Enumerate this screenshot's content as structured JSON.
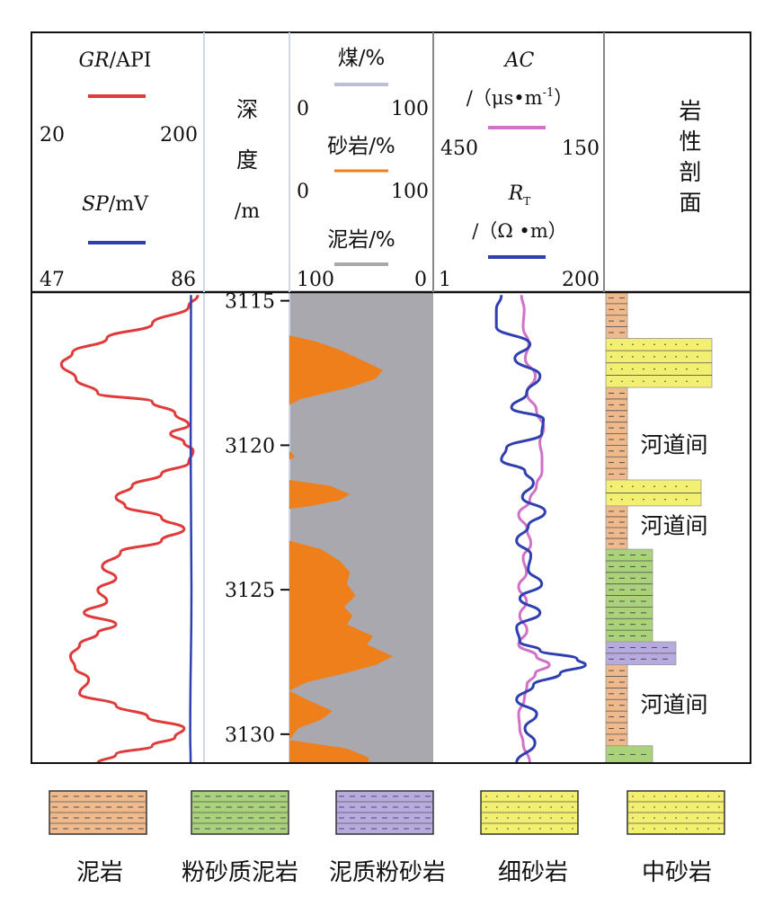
{
  "header": {
    "gr": {
      "name": "GR",
      "unit": "/API",
      "min": "20",
      "max": "200",
      "color": "#e03a3a"
    },
    "sp": {
      "name": "SP",
      "unit": "/mV",
      "min": "47",
      "max": "86",
      "color": "#2f3fb0"
    },
    "depth_label": [
      "深",
      "度",
      "/m"
    ],
    "coal": {
      "label": "煤/%",
      "min": "0",
      "max": "100",
      "color": "#b8bfd6"
    },
    "sand": {
      "label": "砂岩/%",
      "min": "0",
      "max": "100",
      "color": "#ef7f1a"
    },
    "mud": {
      "label": "泥岩/%",
      "min": "100",
      "max": "0",
      "color": "#a8a8ae"
    },
    "ac": {
      "name": "AC",
      "unit": "/（μs•m",
      "sup": "-1",
      "close": "）",
      "min": "450",
      "max": "150",
      "color": "#cf72c8"
    },
    "rt": {
      "name": "R",
      "sub": "T",
      "unit": "/（Ω •m）",
      "min": "1",
      "max": "200",
      "color": "#2f3fb0"
    },
    "lith_label": [
      "岩",
      "性",
      "剖",
      "面"
    ]
  },
  "chart_data": {
    "type": "line",
    "depth_range": [
      3114.7,
      3131.0
    ],
    "depth_ticks": [
      3115,
      3120,
      3125,
      3130
    ],
    "series": [
      {
        "name": "GR",
        "unit": "API",
        "range": [
          20,
          200
        ],
        "points": [
          [
            3114.8,
            200
          ],
          [
            3115.2,
            190
          ],
          [
            3115.8,
            150
          ],
          [
            3116.3,
            100
          ],
          [
            3116.8,
            62
          ],
          [
            3117.2,
            50
          ],
          [
            3117.7,
            66
          ],
          [
            3118.2,
            90
          ],
          [
            3118.5,
            150
          ],
          [
            3118.9,
            175
          ],
          [
            3119.3,
            190
          ],
          [
            3119.6,
            170
          ],
          [
            3119.9,
            185
          ],
          [
            3120.2,
            195
          ],
          [
            3120.6,
            190
          ],
          [
            3121.0,
            160
          ],
          [
            3121.4,
            128
          ],
          [
            3121.8,
            110
          ],
          [
            3122.1,
            120
          ],
          [
            3122.5,
            160
          ],
          [
            3122.9,
            185
          ],
          [
            3123.3,
            160
          ],
          [
            3123.7,
            115
          ],
          [
            3124.2,
            95
          ],
          [
            3124.6,
            110
          ],
          [
            3125.0,
            90
          ],
          [
            3125.4,
            100
          ],
          [
            3125.8,
            75
          ],
          [
            3126.2,
            110
          ],
          [
            3126.5,
            90
          ],
          [
            3126.9,
            70
          ],
          [
            3127.3,
            60
          ],
          [
            3127.7,
            65
          ],
          [
            3128.1,
            80
          ],
          [
            3128.6,
            70
          ],
          [
            3129.0,
            110
          ],
          [
            3129.4,
            145
          ],
          [
            3129.8,
            185
          ],
          [
            3130.1,
            175
          ],
          [
            3130.4,
            150
          ],
          [
            3130.7,
            110
          ],
          [
            3131.0,
            90
          ]
        ]
      },
      {
        "name": "SP",
        "unit": "mV",
        "range": [
          47,
          86
        ],
        "points": [
          [
            3114.8,
            84.4
          ],
          [
            3120,
            84.3
          ],
          [
            3125,
            84.5
          ],
          [
            3130,
            84.2
          ],
          [
            3131,
            84.3
          ]
        ]
      },
      {
        "name": "砂岩",
        "unit": "%",
        "range": [
          0,
          100
        ],
        "points": [
          [
            3114.8,
            0
          ],
          [
            3116.2,
            0
          ],
          [
            3116.4,
            18
          ],
          [
            3116.7,
            35
          ],
          [
            3117.0,
            48
          ],
          [
            3117.4,
            65
          ],
          [
            3117.7,
            60
          ],
          [
            3118.0,
            42
          ],
          [
            3118.2,
            25
          ],
          [
            3118.4,
            8
          ],
          [
            3118.6,
            0
          ],
          [
            3120.2,
            0
          ],
          [
            3120.4,
            4
          ],
          [
            3120.5,
            0
          ],
          [
            3121.2,
            0
          ],
          [
            3121.4,
            28
          ],
          [
            3121.7,
            42
          ],
          [
            3121.9,
            35
          ],
          [
            3122.1,
            15
          ],
          [
            3122.2,
            0
          ],
          [
            3123.3,
            0
          ],
          [
            3123.6,
            22
          ],
          [
            3124.0,
            35
          ],
          [
            3124.4,
            42
          ],
          [
            3124.8,
            40
          ],
          [
            3125.2,
            46
          ],
          [
            3125.6,
            38
          ],
          [
            3125.9,
            44
          ],
          [
            3126.2,
            40
          ],
          [
            3126.6,
            58
          ],
          [
            3126.9,
            54
          ],
          [
            3127.3,
            72
          ],
          [
            3127.6,
            60
          ],
          [
            3127.9,
            38
          ],
          [
            3128.2,
            12
          ],
          [
            3128.5,
            0
          ],
          [
            3128.8,
            12
          ],
          [
            3129.2,
            30
          ],
          [
            3129.5,
            22
          ],
          [
            3129.8,
            6
          ],
          [
            3130.2,
            0
          ],
          [
            3130.5,
            40
          ],
          [
            3130.8,
            55
          ],
          [
            3131.0,
            55
          ]
        ]
      },
      {
        "name": "AC",
        "unit": "μs•m⁻¹",
        "range": [
          450,
          150
        ],
        "points": [
          [
            3114.8,
            295
          ],
          [
            3115.3,
            290
          ],
          [
            3115.9,
            292
          ],
          [
            3116.5,
            282
          ],
          [
            3117.0,
            288
          ],
          [
            3117.6,
            270
          ],
          [
            3118.2,
            285
          ],
          [
            3118.8,
            268
          ],
          [
            3119.4,
            255
          ],
          [
            3119.9,
            262
          ],
          [
            3120.4,
            258
          ],
          [
            3120.9,
            258
          ],
          [
            3121.4,
            268
          ],
          [
            3121.9,
            280
          ],
          [
            3122.4,
            300
          ],
          [
            3122.9,
            285
          ],
          [
            3123.4,
            278
          ],
          [
            3123.9,
            292
          ],
          [
            3124.4,
            286
          ],
          [
            3124.9,
            300
          ],
          [
            3125.4,
            286
          ],
          [
            3125.9,
            298
          ],
          [
            3126.4,
            285
          ],
          [
            3126.9,
            300
          ],
          [
            3127.3,
            268
          ],
          [
            3127.6,
            245
          ],
          [
            3127.9,
            270
          ],
          [
            3128.3,
            285
          ],
          [
            3128.8,
            290
          ],
          [
            3129.3,
            300
          ],
          [
            3129.8,
            298
          ],
          [
            3130.3,
            292
          ],
          [
            3131.0,
            280
          ]
        ]
      },
      {
        "name": "RT",
        "unit": "Ω•m",
        "range": [
          1,
          200
        ],
        "points": [
          [
            3114.8,
            80
          ],
          [
            3115.3,
            74
          ],
          [
            3115.9,
            74
          ],
          [
            3116.5,
            114
          ],
          [
            3117.0,
            96
          ],
          [
            3117.6,
            126
          ],
          [
            3118.2,
            110
          ],
          [
            3118.7,
            92
          ],
          [
            3119.1,
            130
          ],
          [
            3119.6,
            128
          ],
          [
            3120.1,
            86
          ],
          [
            3120.5,
            80
          ],
          [
            3120.9,
            108
          ],
          [
            3121.3,
            118
          ],
          [
            3121.8,
            105
          ],
          [
            3122.3,
            132
          ],
          [
            3122.8,
            112
          ],
          [
            3123.3,
            98
          ],
          [
            3123.8,
            115
          ],
          [
            3124.3,
            112
          ],
          [
            3124.8,
            128
          ],
          [
            3125.3,
            102
          ],
          [
            3125.8,
            126
          ],
          [
            3126.3,
            98
          ],
          [
            3126.8,
            102
          ],
          [
            3127.1,
            126
          ],
          [
            3127.4,
            170
          ],
          [
            3127.6,
            180
          ],
          [
            3127.9,
            150
          ],
          [
            3128.3,
            118
          ],
          [
            3128.8,
            98
          ],
          [
            3129.3,
            122
          ],
          [
            3129.8,
            108
          ],
          [
            3130.3,
            120
          ],
          [
            3131.0,
            98
          ]
        ]
      }
    ],
    "lithology": [
      {
        "top": 3114.7,
        "bottom": 3116.3,
        "type": "mudstone"
      },
      {
        "top": 3116.3,
        "bottom": 3118.0,
        "type": "medium_sand"
      },
      {
        "top": 3118.0,
        "bottom": 3121.2,
        "type": "mudstone"
      },
      {
        "top": 3121.2,
        "bottom": 3122.1,
        "type": "fine_sand"
      },
      {
        "top": 3122.1,
        "bottom": 3123.6,
        "type": "mudstone"
      },
      {
        "top": 3123.6,
        "bottom": 3126.8,
        "type": "silty_mud"
      },
      {
        "top": 3126.8,
        "bottom": 3127.6,
        "type": "muddy_silt"
      },
      {
        "top": 3127.6,
        "bottom": 3130.4,
        "type": "mudstone"
      },
      {
        "top": 3130.4,
        "bottom": 3131.0,
        "type": "silty_mud"
      }
    ],
    "annotations": [
      {
        "depth": 3120.0,
        "text": "河道间"
      },
      {
        "depth": 3122.8,
        "text": "河道间"
      },
      {
        "depth": 3129.0,
        "text": "河道间"
      }
    ]
  },
  "legend": [
    {
      "type": "mudstone",
      "label": "泥岩",
      "fill": "#efb98c"
    },
    {
      "type": "silty_mud",
      "label": "粉砂质泥岩",
      "fill": "#a9d27a"
    },
    {
      "type": "muddy_silt",
      "label": "泥质粉砂岩",
      "fill": "#b7aadf"
    },
    {
      "type": "fine_sand",
      "label": "细砂岩",
      "fill": "#f3ef70"
    },
    {
      "type": "medium_sand",
      "label": "中砂岩",
      "fill": "#f3ef70"
    }
  ]
}
